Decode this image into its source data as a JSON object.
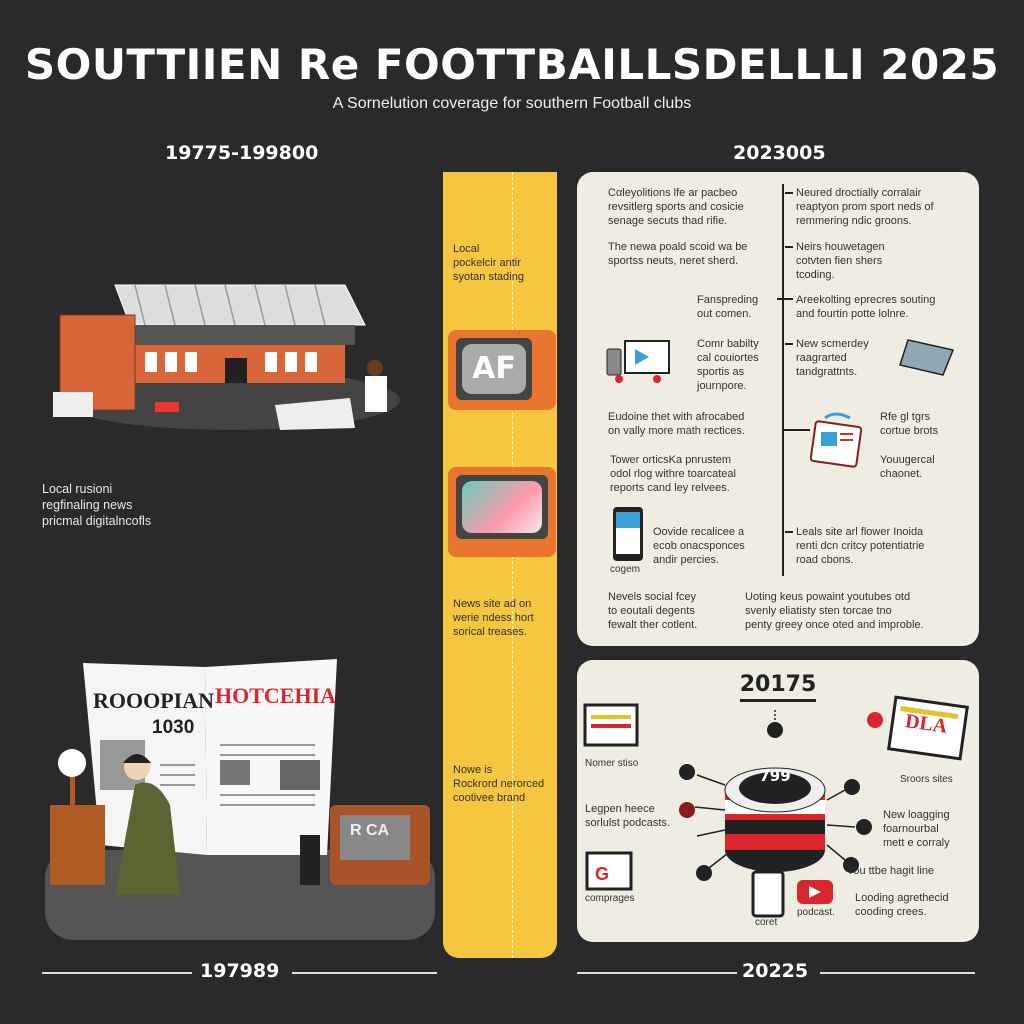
{
  "header": {
    "title": "SOUTTIIEN Re FOOTTBAILLSDELLLI  2025",
    "subtitle": "A Sornelution coverage for southern Football clubs"
  },
  "eras": {
    "left": "19775-199800",
    "right": "2023005"
  },
  "left": {
    "caption": "Local rusioni\nregfinaling news\npricmal digitalncofls",
    "newspaper": {
      "left_headline": "ROOOPIAN",
      "left_number": "1030",
      "right_headline": "HOTCEHIA"
    },
    "tv_screen_top": "AF",
    "tv_screen_bottom": "R CA"
  },
  "strip": {
    "items": [
      "Local\npockelcir antir\nsyotan stading",
      "News site ad on\nwerie ndess hort\nsorical treases.",
      "Nowe is\nRockrord nerorced\ncootivee brand"
    ]
  },
  "panel1": {
    "left_items": [
      "Cαleyolitions lfe ar pacbeo\nrevsitlerg sports and cosicie\nsenage secuts thad rifie.",
      "The newa poald scoid wa be\nsportss neuts, neret sherd.",
      "Fanspreding\nout comen.",
      "Comr babilty\ncal couiortes\nsportis as\njournpore.",
      "Eudoine thet with afrocabed\non vally more math rectices.",
      "Tower orticsKa pnrustem\nodol rlog withre toarcateal\nreports cand ley relvees.",
      "Oovide recalicee a\necob onacsponces\nandir percies."
    ],
    "phone_caption": "cogem",
    "right_items": [
      "Neured droctially corralair\nreaptyon prom sport neds of\nremmering ndic groons.",
      "Neirs houwetagen\ncotvten fien shers\ntcoding.",
      "Areekolting eprecres souting\nand fourtin potte lolnre.",
      "New scmerdey\nraagrarted\ntandgrattnts.",
      "Rfe gl tgrs\ncortue brots",
      "Youugercal\nchaonet.",
      "Leals site arl flower Inoida\nrenti dcn critcy potentiatrie\nroad cbons."
    ],
    "bottom_left": "Nevels social fcey\nto eoutali degents\nfewalt ther cotlent.",
    "bottom_right": "Uoting keus powaint youtubes otd\nsvenly eliatisty sten torcae tno\npenty greey once oted and improble."
  },
  "panel2": {
    "year": "20175",
    "hub_value": "799",
    "monitor_label": "DLA",
    "labels": {
      "news_sites": "Nomer stiso",
      "podcasts": "Legpen heece\nsorlulst podcasts.",
      "comprages": "comprages",
      "tablet": "coret",
      "podcast": "podcast.",
      "sports_sites": "Sroors sites",
      "new_logging": "New loagging\nfoarnourbal\nmett e corraly",
      "youtube": "You ttbe hagit line",
      "looking": "Looding agrethecid\ncooding crees."
    }
  },
  "footer": {
    "left": "197989",
    "right": "20225"
  },
  "colors": {
    "background": "#2a2a2c",
    "strip": "#f5c63f",
    "panel": "#efece2",
    "accent_red": "#d9262c",
    "orange": "#e06c2c"
  }
}
